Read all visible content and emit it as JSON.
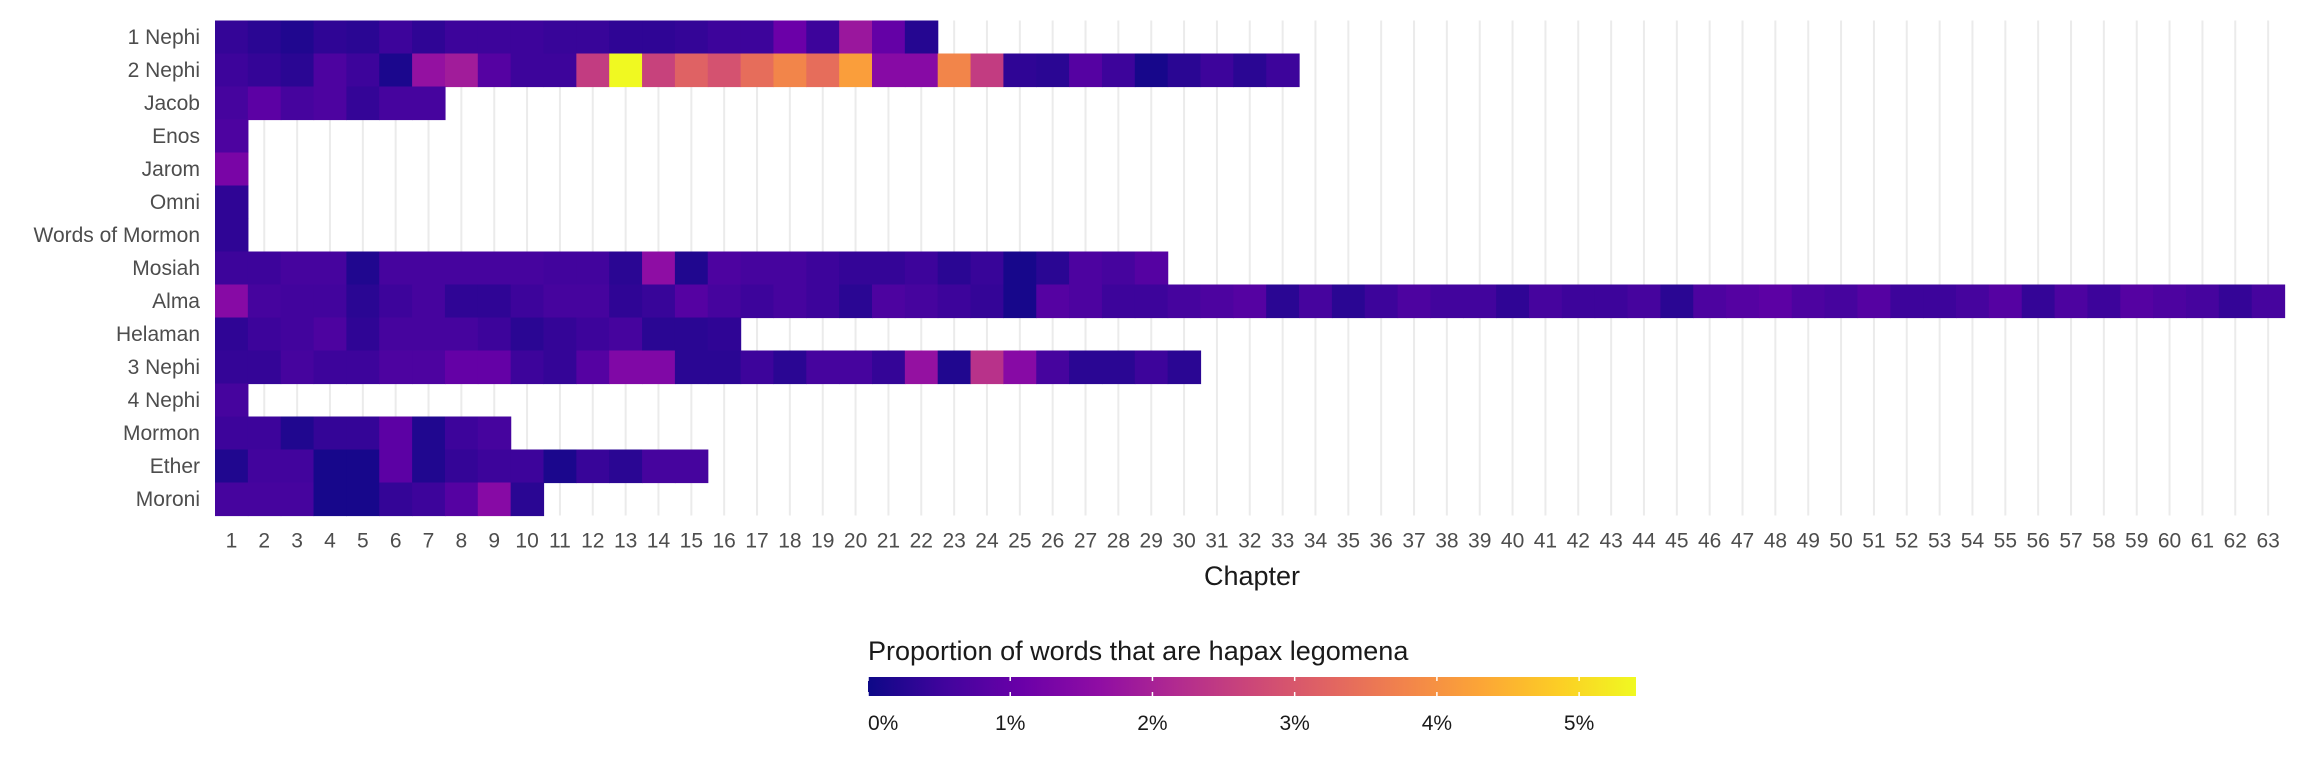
{
  "chart_data": {
    "type": "heatmap",
    "xlabel": "Chapter",
    "ylabel": "",
    "x_ticks": [
      1,
      2,
      3,
      4,
      5,
      6,
      7,
      8,
      9,
      10,
      11,
      12,
      13,
      14,
      15,
      16,
      17,
      18,
      19,
      20,
      21,
      22,
      23,
      24,
      25,
      26,
      27,
      28,
      29,
      30,
      31,
      32,
      33,
      34,
      35,
      36,
      37,
      38,
      39,
      40,
      41,
      42,
      43,
      44,
      45,
      46,
      47,
      48,
      49,
      50,
      51,
      52,
      53,
      54,
      55,
      56,
      57,
      58,
      59,
      60,
      61,
      62,
      63
    ],
    "legend": {
      "title": "Proportion of words that are hapax legomena",
      "position": "bottom",
      "range": [
        0.0,
        5.4
      ],
      "ticks": [
        {
          "value": 0,
          "label": "0%"
        },
        {
          "value": 1,
          "label": "1%"
        },
        {
          "value": 2,
          "label": "2%"
        },
        {
          "value": 3,
          "label": "3%"
        },
        {
          "value": 4,
          "label": "4%"
        },
        {
          "value": 5,
          "label": "5%"
        }
      ]
    },
    "rows": [
      {
        "book": "1 Nephi",
        "values": [
          0.4,
          0.3,
          0.2,
          0.35,
          0.3,
          0.5,
          0.35,
          0.5,
          0.5,
          0.5,
          0.45,
          0.45,
          0.35,
          0.35,
          0.4,
          0.5,
          0.5,
          1.1,
          0.5,
          1.8,
          1.0,
          0.25
        ]
      },
      {
        "book": "2 Nephi",
        "values": [
          0.5,
          0.4,
          0.3,
          0.7,
          0.5,
          0.15,
          1.7,
          1.9,
          0.8,
          0.5,
          0.5,
          2.5,
          5.4,
          2.6,
          3.2,
          2.9,
          3.4,
          3.8,
          3.4,
          4.2,
          1.5,
          1.5,
          3.8,
          2.5,
          0.35,
          0.3,
          0.8,
          0.5,
          0.1,
          0.3,
          0.5,
          0.3,
          0.5
        ]
      },
      {
        "book": "Jacob",
        "values": [
          0.6,
          0.9,
          0.6,
          0.7,
          0.4,
          0.6,
          0.6
        ]
      },
      {
        "book": "Enos",
        "values": [
          0.7
        ]
      },
      {
        "book": "Jarom",
        "values": [
          1.3
        ]
      },
      {
        "book": "Omni",
        "values": [
          0.35
        ]
      },
      {
        "book": "Words of Mormon",
        "values": [
          0.35
        ]
      },
      {
        "book": "Mosiah",
        "values": [
          0.5,
          0.5,
          0.6,
          0.6,
          0.2,
          0.6,
          0.6,
          0.6,
          0.6,
          0.6,
          0.55,
          0.55,
          0.3,
          1.6,
          0.2,
          0.7,
          0.6,
          0.6,
          0.5,
          0.4,
          0.4,
          0.5,
          0.3,
          0.45,
          0.1,
          0.3,
          0.7,
          0.6,
          0.8
        ]
      },
      {
        "book": "Alma",
        "values": [
          1.5,
          0.6,
          0.55,
          0.55,
          0.3,
          0.5,
          0.6,
          0.35,
          0.35,
          0.5,
          0.6,
          0.6,
          0.35,
          0.45,
          0.8,
          0.6,
          0.5,
          0.6,
          0.5,
          0.3,
          0.7,
          0.6,
          0.5,
          0.4,
          0.1,
          0.8,
          0.7,
          0.5,
          0.5,
          0.6,
          0.7,
          0.8,
          0.3,
          0.6,
          0.3,
          0.5,
          0.7,
          0.55,
          0.55,
          0.35,
          0.6,
          0.5,
          0.5,
          0.6,
          0.3,
          0.7,
          0.8,
          0.9,
          0.7,
          0.6,
          0.8,
          0.5,
          0.5,
          0.6,
          0.8,
          0.4,
          0.7,
          0.5,
          0.8,
          0.7,
          0.6,
          0.4,
          0.6
        ]
      },
      {
        "book": "Helaman",
        "values": [
          0.35,
          0.5,
          0.55,
          0.7,
          0.35,
          0.6,
          0.6,
          0.6,
          0.5,
          0.3,
          0.4,
          0.5,
          0.6,
          0.3,
          0.3,
          0.35
        ]
      },
      {
        "book": "3 Nephi",
        "values": [
          0.4,
          0.4,
          0.6,
          0.5,
          0.5,
          0.7,
          0.7,
          1.0,
          1.0,
          0.5,
          0.4,
          0.8,
          1.4,
          1.4,
          0.3,
          0.3,
          0.5,
          0.3,
          0.6,
          0.6,
          0.4,
          1.7,
          0.2,
          2.3,
          1.5,
          0.6,
          0.3,
          0.3,
          0.5,
          0.3
        ]
      },
      {
        "book": "4 Nephi",
        "values": [
          0.6
        ]
      },
      {
        "book": "Mormon",
        "values": [
          0.5,
          0.5,
          0.2,
          0.4,
          0.4,
          0.9,
          0.2,
          0.5,
          0.6
        ]
      },
      {
        "book": "Ether",
        "values": [
          0.2,
          0.55,
          0.55,
          0.1,
          0.1,
          0.9,
          0.2,
          0.4,
          0.5,
          0.5,
          0.15,
          0.45,
          0.3,
          0.6,
          0.6
        ]
      },
      {
        "book": "Moroni",
        "values": [
          0.6,
          0.6,
          0.6,
          0.1,
          0.1,
          0.4,
          0.5,
          0.8,
          1.5,
          0.3
        ]
      }
    ]
  }
}
